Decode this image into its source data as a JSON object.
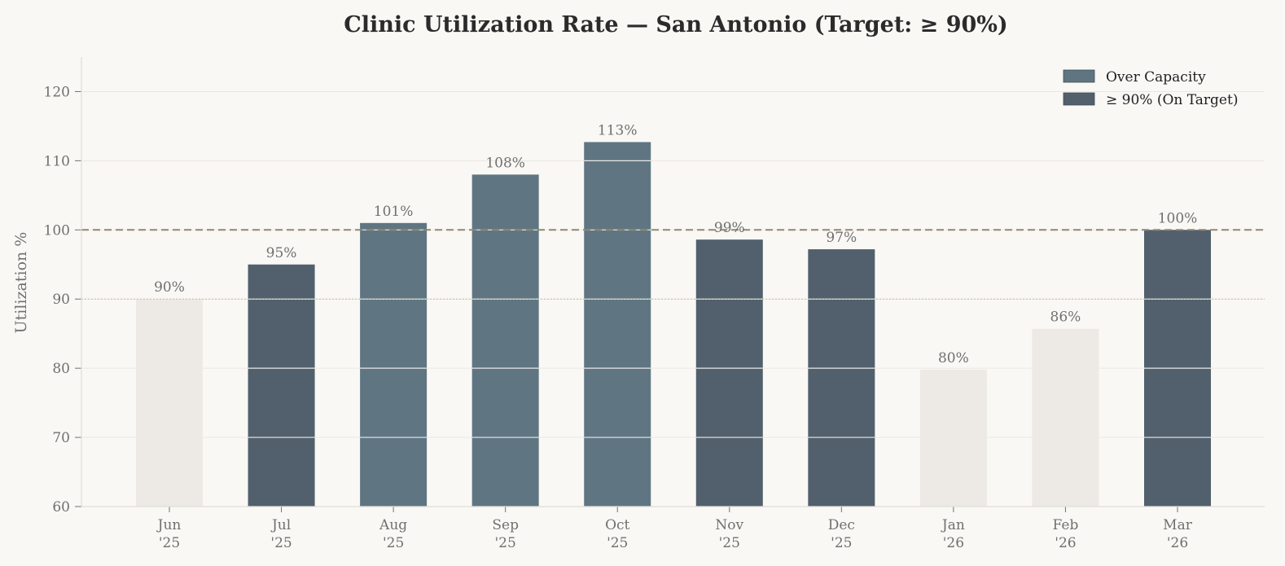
{
  "chart_data": {
    "type": "bar",
    "title": "Clinic Utilization Rate — San Antonio (Target: ≥ 90%)",
    "xlabel": "",
    "ylabel": "Utilization %",
    "ylim": [
      60,
      125
    ],
    "yticks": [
      60,
      70,
      80,
      90,
      100,
      110,
      120
    ],
    "categories": [
      [
        "Jun",
        "'25"
      ],
      [
        "Jul",
        "'25"
      ],
      [
        "Aug",
        "'25"
      ],
      [
        "Sep",
        "'25"
      ],
      [
        "Oct",
        "'25"
      ],
      [
        "Nov",
        "'25"
      ],
      [
        "Dec",
        "'25"
      ],
      [
        "Jan",
        "'26"
      ],
      [
        "Feb",
        "'26"
      ],
      [
        "Mar",
        "'26"
      ]
    ],
    "values": [
      90,
      95,
      101,
      108,
      112.7,
      98.6,
      97.2,
      79.8,
      85.7,
      100
    ],
    "value_labels": [
      "90%",
      "95%",
      "101%",
      "108%",
      "113%",
      "99%",
      "97%",
      "80%",
      "86%",
      "100%"
    ],
    "bar_status": [
      "below",
      "target",
      "over",
      "over",
      "over",
      "target",
      "target",
      "below",
      "below",
      "target"
    ],
    "reference_lines": [
      {
        "value": 100,
        "style": "dashed",
        "color": "#948672"
      },
      {
        "value": 90,
        "style": "dotted",
        "color": "#c8b8a2"
      }
    ],
    "legend": {
      "placement": "top-right",
      "entries": [
        {
          "label": "Over Capacity",
          "status": "over"
        },
        {
          "label": "≥ 90% (On Target)",
          "status": "target"
        }
      ]
    },
    "colors": {
      "over": "#5f7682",
      "target": "#51606c",
      "below": "#edeae5",
      "grid": "#ebe8e3",
      "background": "#f9f8f5"
    },
    "grid": true
  }
}
